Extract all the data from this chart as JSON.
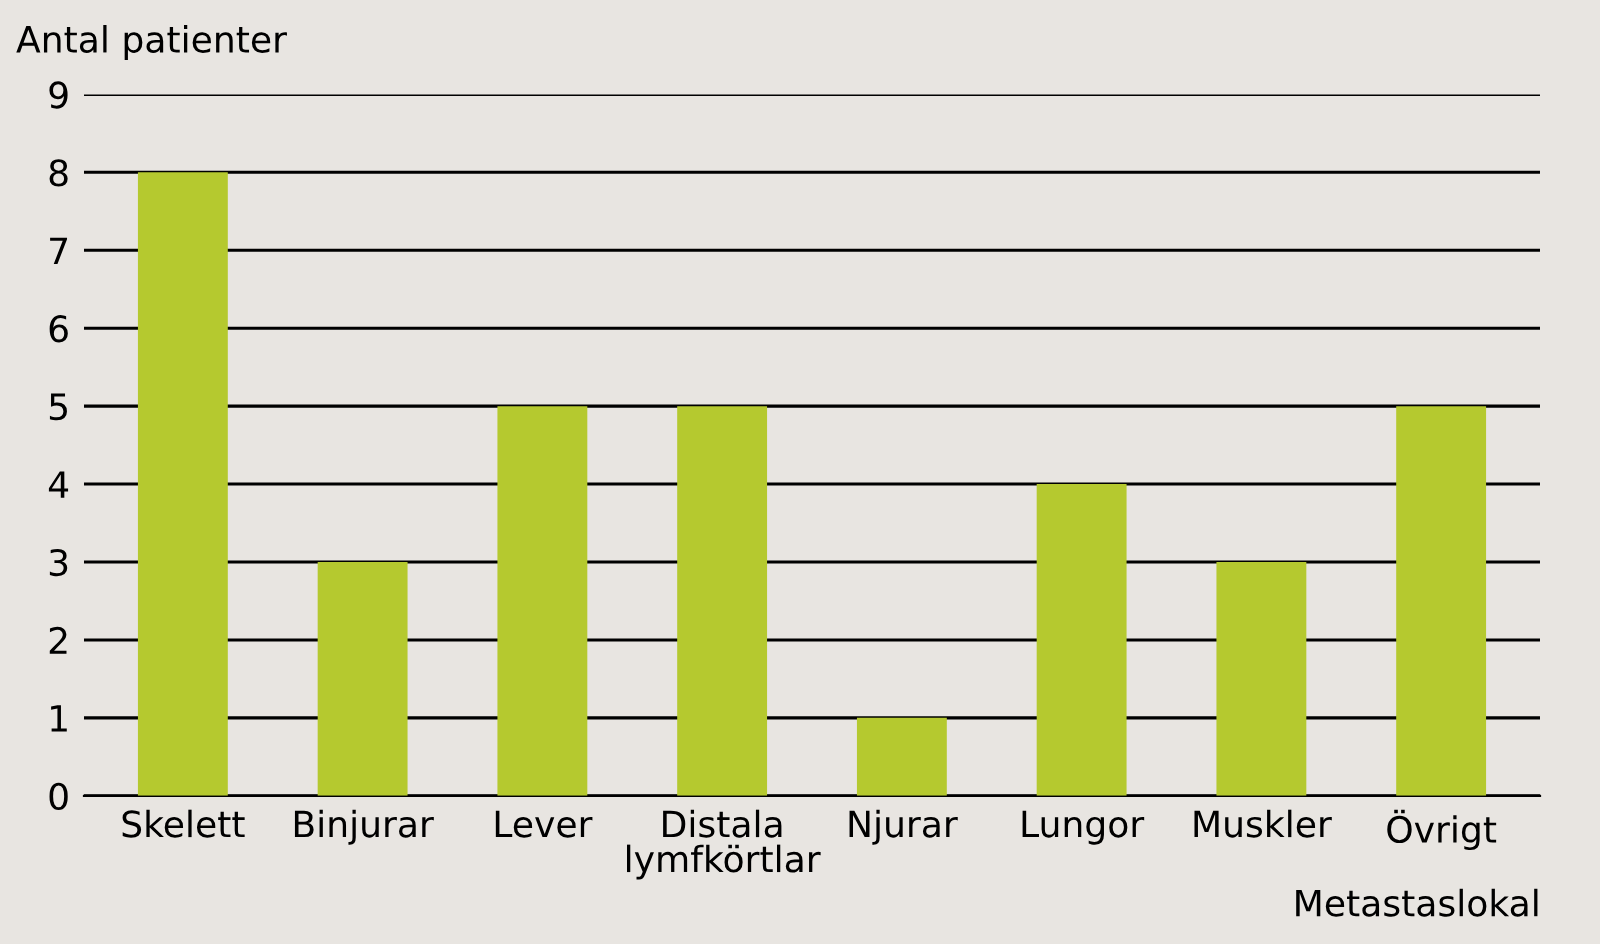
{
  "chart_data": {
    "type": "bar",
    "ylabel": "Antal patienter",
    "xlabel": "Metastaslokal",
    "categories": [
      "Skelett",
      "Binjurar",
      "Lever",
      "Distala\nlymfkörtlar",
      "Njurar",
      "Lungor",
      "Muskler",
      "Övrigt"
    ],
    "values": [
      8,
      3,
      5,
      5,
      1,
      4,
      3,
      5
    ],
    "color": "#b5c92f",
    "ylim": [
      0,
      9
    ],
    "yticks": [
      0,
      1,
      2,
      3,
      4,
      5,
      6,
      7,
      8,
      9
    ],
    "grid": "y"
  }
}
